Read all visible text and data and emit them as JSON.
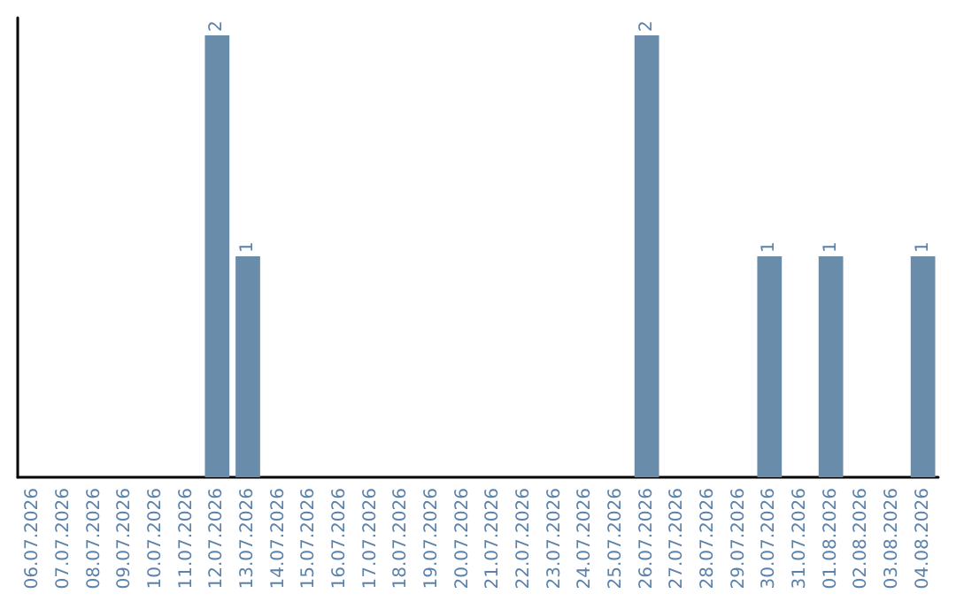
{
  "chart_data": {
    "type": "bar",
    "categories": [
      "06.07.2026",
      "07.07.2026",
      "08.07.2026",
      "09.07.2026",
      "10.07.2026",
      "11.07.2026",
      "12.07.2026",
      "13.07.2026",
      "14.07.2026",
      "15.07.2026",
      "16.07.2026",
      "17.07.2026",
      "18.07.2026",
      "19.07.2026",
      "20.07.2026",
      "21.07.2026",
      "22.07.2026",
      "23.07.2026",
      "24.07.2026",
      "25.07.2026",
      "26.07.2026",
      "27.07.2026",
      "28.07.2026",
      "29.07.2026",
      "30.07.2026",
      "31.07.2026",
      "01.08.2026",
      "02.08.2026",
      "03.08.2026",
      "04.08.2026"
    ],
    "values": [
      null,
      null,
      null,
      null,
      null,
      null,
      2,
      1,
      null,
      null,
      null,
      null,
      null,
      null,
      null,
      null,
      null,
      null,
      null,
      null,
      2,
      null,
      null,
      null,
      1,
      null,
      1,
      null,
      null,
      1
    ],
    "color": "#6a8cab",
    "data_labels": true,
    "tick_labels": "x"
  }
}
